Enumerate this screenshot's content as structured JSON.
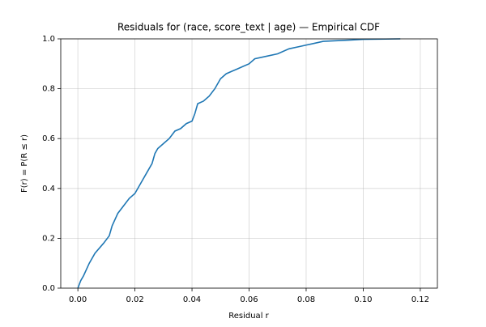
{
  "chart_data": {
    "type": "line",
    "title": "Residuals for (race, score_text | age) — Empirical CDF",
    "xlabel": "Residual r",
    "ylabel": "F(r) = P(R ≤ r)",
    "x": [
      0.0,
      0.001,
      0.002,
      0.004,
      0.006,
      0.009,
      0.011,
      0.012,
      0.014,
      0.016,
      0.018,
      0.02,
      0.022,
      0.024,
      0.026,
      0.027,
      0.028,
      0.03,
      0.032,
      0.034,
      0.036,
      0.038,
      0.04,
      0.041,
      0.042,
      0.044,
      0.046,
      0.048,
      0.05,
      0.052,
      0.054,
      0.056,
      0.058,
      0.06,
      0.062,
      0.066,
      0.07,
      0.074,
      0.078,
      0.082,
      0.086,
      0.095,
      0.1,
      0.113
    ],
    "series": [
      {
        "color": "#1f77b4",
        "values": [
          0.0,
          0.03,
          0.05,
          0.1,
          0.14,
          0.18,
          0.21,
          0.25,
          0.3,
          0.33,
          0.36,
          0.38,
          0.42,
          0.46,
          0.5,
          0.54,
          0.56,
          0.58,
          0.6,
          0.63,
          0.64,
          0.66,
          0.67,
          0.7,
          0.74,
          0.75,
          0.77,
          0.8,
          0.84,
          0.86,
          0.87,
          0.88,
          0.89,
          0.9,
          0.92,
          0.93,
          0.94,
          0.96,
          0.97,
          0.98,
          0.99,
          0.995,
          0.998,
          1.0
        ]
      }
    ],
    "xlim": [
      -0.006,
      0.126
    ],
    "ylim": [
      0,
      1
    ],
    "xticks": [
      {
        "value": 0,
        "label": "0.00"
      },
      {
        "value": 0.02,
        "label": "0.02"
      },
      {
        "value": 0.04,
        "label": "0.04"
      },
      {
        "value": 0.06,
        "label": "0.06"
      },
      {
        "value": 0.08,
        "label": "0.08"
      },
      {
        "value": 0.1,
        "label": "0.10"
      },
      {
        "value": 0.12,
        "label": "0.12"
      }
    ],
    "yticks": [
      {
        "value": 0,
        "label": "0.0"
      },
      {
        "value": 0.2,
        "label": "0.2"
      },
      {
        "value": 0.4,
        "label": "0.4"
      },
      {
        "value": 0.6,
        "label": "0.6"
      },
      {
        "value": 0.8,
        "label": "0.8"
      },
      {
        "value": 1,
        "label": "1.0"
      }
    ],
    "grid": true
  }
}
